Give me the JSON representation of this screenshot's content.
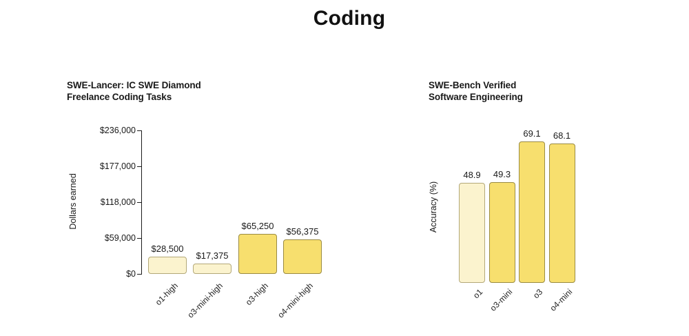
{
  "page": {
    "title": "Coding"
  },
  "colors": {
    "bar_light": "#FBF3CE",
    "bar_dark": "#F7DF6E",
    "bar_border_light": "#B3A878",
    "bar_border_dark": "#9A8B42",
    "axis": "#1A1A1A",
    "text": "#191919"
  },
  "chart_data": [
    {
      "type": "bar",
      "title": "SWE-Lancer: IC SWE Diamond Freelance Coding Tasks",
      "title_line1": "SWE-Lancer: IC SWE Diamond",
      "title_line2": "Freelance Coding Tasks",
      "ylabel": "Dollars earned",
      "xlabel": "",
      "categories": [
        "o1-high",
        "o3-mini-high",
        "o3-high",
        "o4-mini-high"
      ],
      "values": [
        28500,
        17375,
        65250,
        56375
      ],
      "value_labels": [
        "$28,500",
        "$17,375",
        "$65,250",
        "$56,375"
      ],
      "yticks": [
        0,
        59000,
        118000,
        177000,
        236000
      ],
      "ytick_labels": [
        "$0",
        "$59,000",
        "$118,000",
        "$177,000",
        "$236,000"
      ],
      "ylim": [
        0,
        236000
      ],
      "bar_palette": [
        "light",
        "light",
        "dark",
        "dark"
      ],
      "grid": false,
      "legend": false
    },
    {
      "type": "bar",
      "title": "SWE-Bench Verified Software Engineering",
      "title_line1": "SWE-Bench Verified",
      "title_line2": "Software Engineering",
      "ylabel": "Accuracy (%)",
      "xlabel": "",
      "categories": [
        "o1",
        "o3-mini",
        "o3",
        "o4-mini"
      ],
      "values": [
        48.9,
        49.3,
        69.1,
        68.1
      ],
      "value_labels": [
        "48.9",
        "49.3",
        "69.1",
        "68.1"
      ],
      "yticks": [],
      "ytick_labels": [],
      "ylim": [
        0,
        70
      ],
      "bar_palette": [
        "light",
        "dark",
        "dark",
        "dark"
      ],
      "grid": false,
      "legend": false
    }
  ]
}
